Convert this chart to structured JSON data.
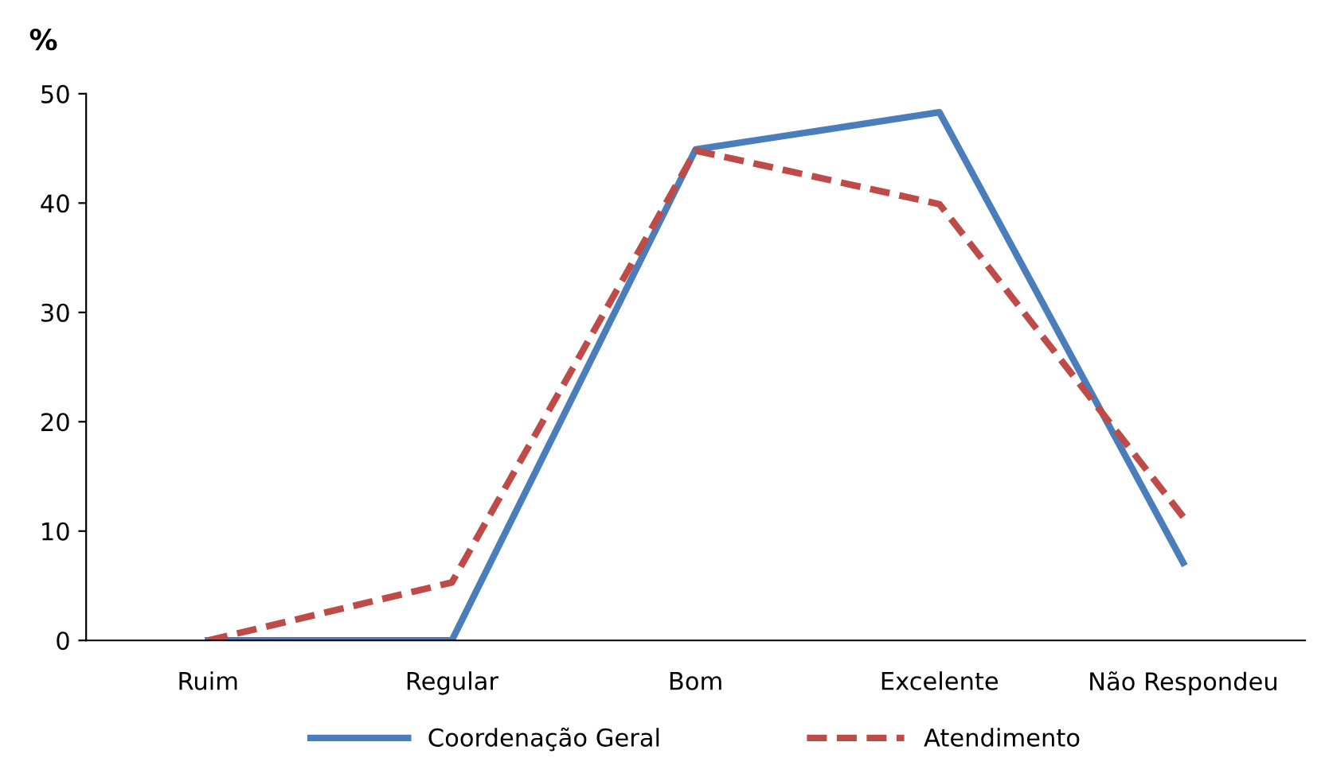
{
  "chart_data": {
    "type": "line",
    "ylabel": "%",
    "categories": [
      "Ruim",
      "Regular",
      "Bom",
      "Excelente",
      "Não Respondeu"
    ],
    "series": [
      {
        "name": "Coordenação Geral",
        "color": "#4a7ebb",
        "values": [
          0,
          0,
          44.9,
          48.3,
          7.1
        ],
        "line_style": "solid"
      },
      {
        "name": "Atendimento",
        "color": "#be4b48",
        "values": [
          0,
          5.3,
          44.8,
          39.9,
          11.3
        ],
        "line_style": "dashed"
      }
    ],
    "ylim": [
      0,
      50
    ],
    "yticks": [
      0,
      10,
      20,
      30,
      40,
      50
    ],
    "grid": false,
    "legend": "bottom",
    "marker": "none"
  }
}
